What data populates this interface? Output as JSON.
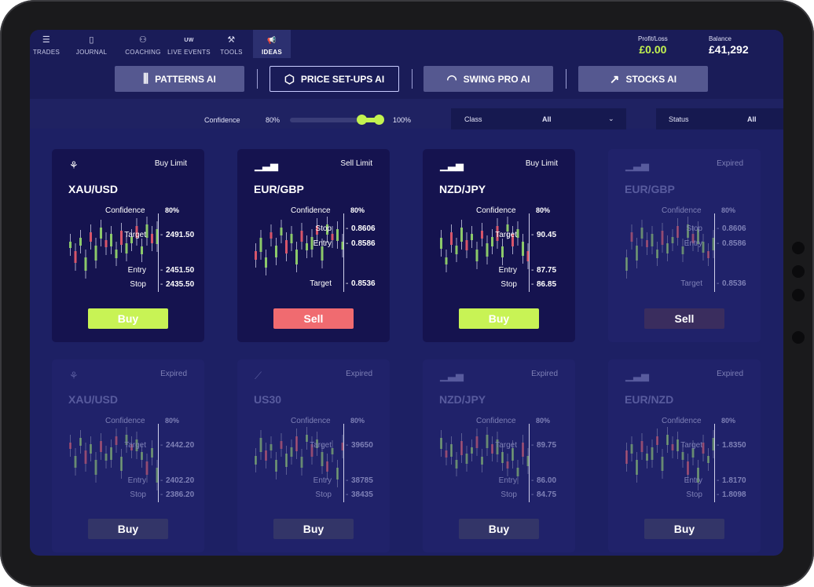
{
  "nav": [
    {
      "label": "TRADES",
      "icon": "list-icon",
      "glyph": "☰"
    },
    {
      "label": "JOURNAL",
      "icon": "journal-icon",
      "glyph": "▯"
    },
    {
      "label": "COACHING",
      "icon": "coaching-icon",
      "glyph": "⚇"
    },
    {
      "label": "LIVE EVENTS",
      "icon": "uw-icon",
      "glyph": "UW"
    },
    {
      "label": "TOOLS",
      "icon": "tools-icon",
      "glyph": "⚒"
    },
    {
      "label": "IDEAS",
      "icon": "megaphone-icon",
      "glyph": "📢"
    }
  ],
  "account": {
    "pl_label": "Profit/Loss",
    "pl_value": "£0.00",
    "balance_label": "Balance",
    "balance_value": "£41,292"
  },
  "ai_tabs": [
    {
      "label": "PATTERNS AI",
      "icon": "bars-icon",
      "glyph": "⫼"
    },
    {
      "label": "PRICE SET-UPS AI",
      "icon": "hexagon-arrow-icon",
      "glyph": "⬡"
    },
    {
      "label": "SWING PRO AI",
      "icon": "gauge-icon",
      "glyph": "◠"
    },
    {
      "label": "STOCKS AI",
      "icon": "trend-chart-icon",
      "glyph": "↗"
    }
  ],
  "filters": {
    "confidence_label": "Confidence",
    "confidence_min": "80%",
    "confidence_max": "100%",
    "confidence_min_value": 80,
    "confidence_max_value": 100,
    "class_label": "Class",
    "class_value": "All",
    "status_label": "Status",
    "status_value": "All"
  },
  "colors": {
    "buy": "#c8f355",
    "sell": "#f06b70",
    "profit": "#c3f350",
    "candle_up": "#8cc96a",
    "candle_down": "#d8556a"
  },
  "cards": [
    {
      "status": "Buy Limit",
      "pair": "XAU/USD",
      "icon": "pattern-icon",
      "confidence_label": "Confidence",
      "confidence": "80%",
      "rows": [
        {
          "label": "Target",
          "value": "2491.50"
        },
        {
          "label": "Entry",
          "value": "2451.50"
        },
        {
          "label": "Stop",
          "value": "2435.50"
        }
      ],
      "button": "Buy",
      "dim": false
    },
    {
      "status": "Sell Limit",
      "pair": "EUR/GBP",
      "icon": "signal-bars-icon",
      "confidence_label": "Confidence",
      "confidence": "80%",
      "rows": [
        {
          "label": "Stop",
          "value": "0.8606"
        },
        {
          "label": "Entry",
          "value": "0.8586"
        },
        {
          "label": "Target",
          "value": "0.8536"
        }
      ],
      "button": "Sell",
      "dim": false
    },
    {
      "status": "Buy Limit",
      "pair": "NZD/JPY",
      "icon": "signal-bars-icon",
      "confidence_label": "Confidence",
      "confidence": "80%",
      "rows": [
        {
          "label": "Target",
          "value": "90.45"
        },
        {
          "label": "Entry",
          "value": "87.75"
        },
        {
          "label": "Stop",
          "value": "86.85"
        }
      ],
      "button": "Buy",
      "dim": false
    },
    {
      "status": "Expired",
      "pair": "EUR/GBP",
      "icon": "signal-bars-icon",
      "confidence_label": "Confidence",
      "confidence": "80%",
      "rows": [
        {
          "label": "Stop",
          "value": "0.8606"
        },
        {
          "label": "Entry",
          "value": "0.8586"
        },
        {
          "label": "Target",
          "value": "0.8536"
        }
      ],
      "button": "Sell",
      "dim": true
    },
    {
      "status": "Expired",
      "pair": "XAU/USD",
      "icon": "pattern-icon",
      "confidence_label": "Confidence",
      "confidence": "80%",
      "rows": [
        {
          "label": "Target",
          "value": "2442.20"
        },
        {
          "label": "Entry",
          "value": "2402.20"
        },
        {
          "label": "Stop",
          "value": "2386.20"
        }
      ],
      "button": "Buy",
      "dim": true
    },
    {
      "status": "Expired",
      "pair": "US30",
      "icon": "trend-icon",
      "confidence_label": "Confidence",
      "confidence": "80%",
      "rows": [
        {
          "label": "Target",
          "value": "39650"
        },
        {
          "label": "Entry",
          "value": "38785"
        },
        {
          "label": "Stop",
          "value": "38435"
        }
      ],
      "button": "Buy",
      "dim": true
    },
    {
      "status": "Expired",
      "pair": "NZD/JPY",
      "icon": "signal-bars-icon",
      "confidence_label": "Confidence",
      "confidence": "80%",
      "rows": [
        {
          "label": "Target",
          "value": "89.75"
        },
        {
          "label": "Entry",
          "value": "86.00"
        },
        {
          "label": "Stop",
          "value": "84.75"
        }
      ],
      "button": "Buy",
      "dim": true
    },
    {
      "status": "Expired",
      "pair": "EUR/NZD",
      "icon": "signal-bars-icon",
      "confidence_label": "Confidence",
      "confidence": "80%",
      "rows": [
        {
          "label": "Target",
          "value": "1.8350"
        },
        {
          "label": "Entry",
          "value": "1.8170"
        },
        {
          "label": "Stop",
          "value": "1.8098"
        }
      ],
      "button": "Buy",
      "dim": true
    }
  ]
}
